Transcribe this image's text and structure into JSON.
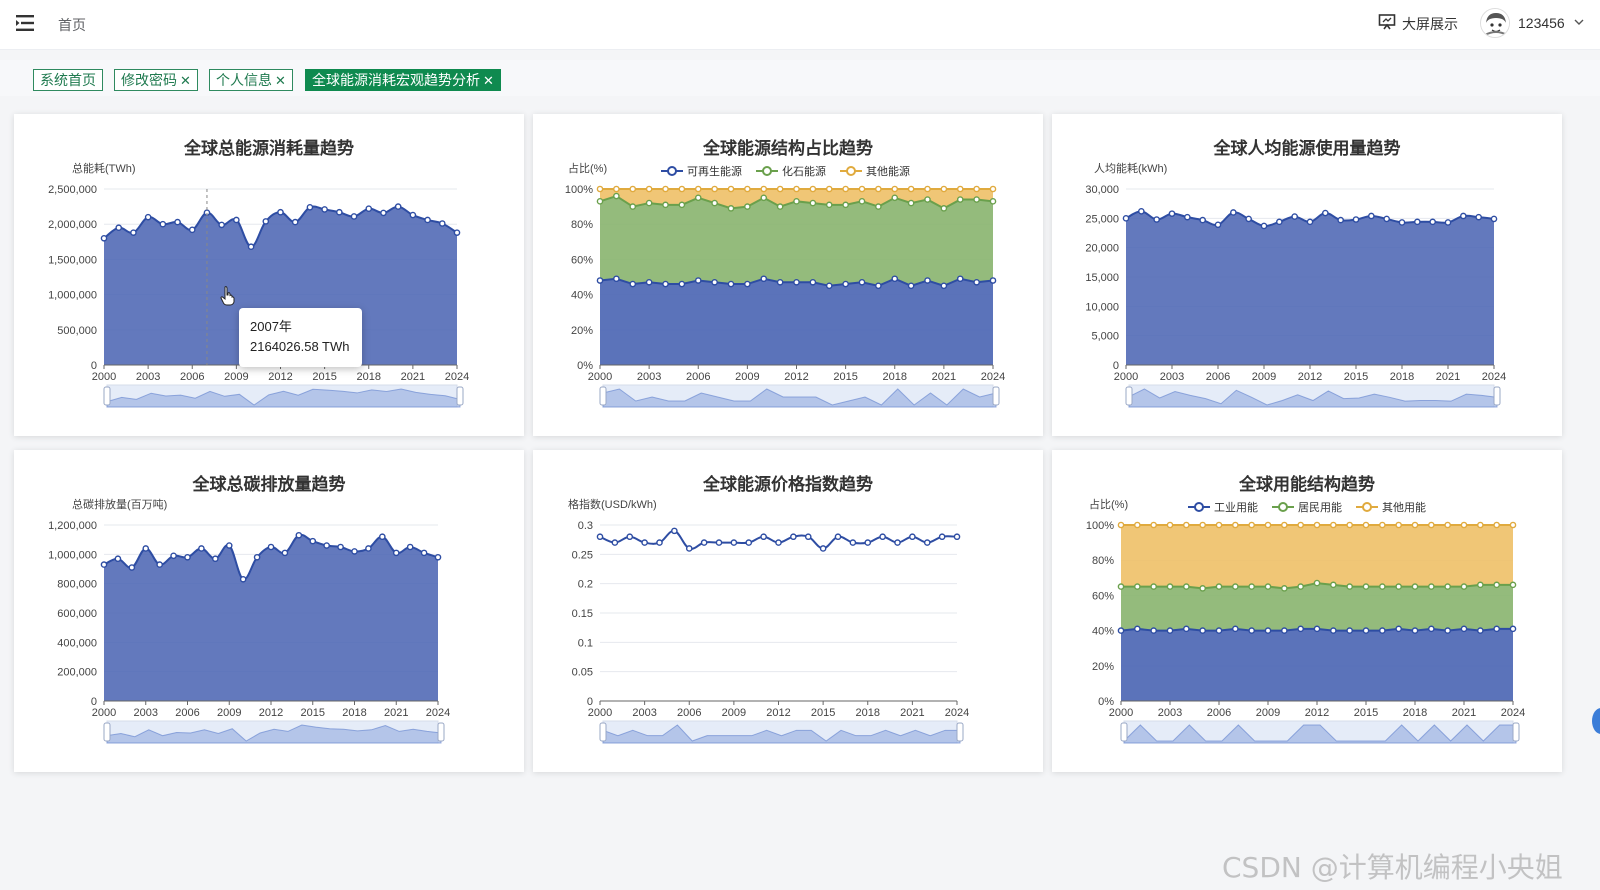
{
  "header": {
    "breadcrumb": "首页",
    "big_screen_label": "大屏展示",
    "username": "123456",
    "icons": {
      "menu": "hamburger-icon",
      "screen": "monitor-icon",
      "avatar": "avatar-icon",
      "chevron": "chevron-down-icon"
    }
  },
  "tabs": [
    {
      "label": "系统首页",
      "closable": false,
      "active": false
    },
    {
      "label": "修改密码",
      "closable": true,
      "active": false
    },
    {
      "label": "个人信息",
      "closable": true,
      "active": false
    },
    {
      "label": "全球能源消耗宏观趋势分析",
      "closable": true,
      "active": true
    }
  ],
  "tooltip": {
    "line1": "2007年",
    "line2": "2164026.58 TWh"
  },
  "watermark": "CSDN @计算机编程小央姐",
  "colors": {
    "blue": "#4d67b4",
    "green": "#88b46e",
    "orange": "#eec067",
    "accent": "#0f8a4f"
  },
  "chart_data": [
    {
      "type": "area",
      "title": "全球总能源消耗量趋势",
      "ylabel": "总能耗(TWh)",
      "ylim": [
        0,
        2500000
      ],
      "yticks": [
        0,
        500000,
        1000000,
        1500000,
        2000000,
        2500000
      ],
      "ytick_labels": [
        "0",
        "500,000",
        "1,000,000",
        "1,500,000",
        "2,000,000",
        "2,500,000"
      ],
      "xtick_labels": [
        "2000",
        "2003",
        "2006",
        "2009",
        "2012",
        "2015",
        "2018",
        "2021",
        "2024"
      ],
      "x": [
        2000,
        2001,
        2002,
        2003,
        2004,
        2005,
        2006,
        2007,
        2008,
        2009,
        2010,
        2011,
        2012,
        2013,
        2014,
        2015,
        2016,
        2017,
        2018,
        2019,
        2020,
        2021,
        2022,
        2023,
        2024
      ],
      "series": [
        {
          "values": [
            1800000,
            1950000,
            1880000,
            2100000,
            2000000,
            2030000,
            1920000,
            2164026.58,
            1990000,
            2060000,
            1680000,
            2040000,
            2170000,
            2030000,
            2240000,
            2210000,
            2170000,
            2110000,
            2220000,
            2160000,
            2250000,
            2130000,
            2060000,
            2010000,
            1880000
          ]
        }
      ]
    },
    {
      "type": "area",
      "stacked": true,
      "title": "全球能源结构占比趋势",
      "ylabel": "占比(%)",
      "ylim": [
        0,
        100
      ],
      "ytick_labels": [
        "0%",
        "20%",
        "40%",
        "60%",
        "80%",
        "100%"
      ],
      "xtick_labels": [
        "2000",
        "2003",
        "2006",
        "2009",
        "2012",
        "2015",
        "2018",
        "2021",
        "2024"
      ],
      "legend": "top-center",
      "series": [
        {
          "name": "可再生能源",
          "values": [
            48,
            49,
            46,
            47,
            46,
            46,
            48,
            47,
            46,
            46,
            49,
            47,
            47,
            47,
            45,
            46,
            47,
            45,
            49,
            45,
            48,
            45,
            49,
            47,
            48
          ]
        },
        {
          "name": "化石能源",
          "values": [
            45,
            47,
            44,
            45,
            45,
            45,
            47,
            45,
            43,
            44,
            46,
            43,
            46,
            45,
            46,
            45,
            46,
            45,
            46,
            47,
            46,
            44,
            45,
            47,
            45
          ]
        },
        {
          "name": "其他能源",
          "values": [
            7,
            4,
            10,
            8,
            9,
            9,
            5,
            8,
            11,
            10,
            5,
            10,
            7,
            8,
            9,
            9,
            7,
            10,
            5,
            8,
            6,
            11,
            6,
            6,
            7
          ]
        }
      ]
    },
    {
      "type": "area",
      "title": "全球人均能源使用量趋势",
      "ylabel": "人均能耗(kWh)",
      "ylim": [
        0,
        30000
      ],
      "ytick_labels": [
        "0",
        "5,000",
        "10,000",
        "15,000",
        "20,000",
        "25,000",
        "30,000"
      ],
      "xtick_labels": [
        "2000",
        "2003",
        "2006",
        "2009",
        "2012",
        "2015",
        "2018",
        "2021",
        "2024"
      ],
      "series": [
        {
          "values": [
            25000,
            26200,
            24800,
            25800,
            25200,
            24700,
            23900,
            26000,
            24900,
            23700,
            24400,
            25300,
            24400,
            25900,
            24700,
            24800,
            25400,
            24900,
            24300,
            24400,
            24400,
            24300,
            25400,
            25200,
            24900
          ]
        }
      ]
    },
    {
      "type": "area",
      "title": "全球总碳排放量趋势",
      "ylabel": "总碳排放量(百万吨)",
      "ylim": [
        0,
        1200000
      ],
      "ytick_labels": [
        "0",
        "200,000",
        "400,000",
        "600,000",
        "800,000",
        "1,000,000",
        "1,200,000"
      ],
      "xtick_labels": [
        "2000",
        "2003",
        "2006",
        "2009",
        "2012",
        "2015",
        "2018",
        "2021",
        "2024"
      ],
      "series": [
        {
          "values": [
            930000,
            970000,
            910000,
            1040000,
            930000,
            990000,
            980000,
            1040000,
            970000,
            1060000,
            830000,
            980000,
            1050000,
            1010000,
            1130000,
            1090000,
            1060000,
            1050000,
            1020000,
            1040000,
            1120000,
            1010000,
            1050000,
            1010000,
            980000
          ]
        }
      ]
    },
    {
      "type": "line",
      "title": "全球能源价格指数趋势",
      "ylabel": "格指数(USD/kWh)",
      "ylim": [
        0,
        0.3
      ],
      "ytick_labels": [
        "0",
        "0.05",
        "0.1",
        "0.15",
        "0.2",
        "0.25",
        "0.3"
      ],
      "xtick_labels": [
        "2000",
        "2003",
        "2006",
        "2009",
        "2012",
        "2015",
        "2018",
        "2021",
        "2024"
      ],
      "series": [
        {
          "values": [
            0.28,
            0.27,
            0.28,
            0.27,
            0.27,
            0.29,
            0.26,
            0.27,
            0.27,
            0.27,
            0.27,
            0.28,
            0.27,
            0.28,
            0.28,
            0.26,
            0.28,
            0.27,
            0.27,
            0.28,
            0.27,
            0.28,
            0.27,
            0.28,
            0.28
          ]
        }
      ]
    },
    {
      "type": "area",
      "stacked": true,
      "title": "全球用能结构趋势",
      "ylabel": "占比(%)",
      "ylim": [
        0,
        100
      ],
      "ytick_labels": [
        "0%",
        "20%",
        "40%",
        "60%",
        "80%",
        "100%"
      ],
      "xtick_labels": [
        "2000",
        "2003",
        "2006",
        "2009",
        "2012",
        "2015",
        "2018",
        "2021",
        "2024"
      ],
      "legend": "top-center",
      "series": [
        {
          "name": "工业用能",
          "values": [
            40,
            41,
            40,
            40,
            41,
            40,
            40,
            41,
            40,
            40,
            40,
            41,
            41,
            40,
            40,
            40,
            40,
            41,
            40,
            41,
            40,
            41,
            40,
            41,
            41
          ]
        },
        {
          "name": "居民用能",
          "values": [
            25,
            24,
            25,
            25,
            24,
            24,
            25,
            24,
            25,
            25,
            24,
            24,
            26,
            26,
            25,
            25,
            25,
            24,
            25,
            24,
            25,
            24,
            26,
            25,
            25
          ]
        },
        {
          "name": "其他用能",
          "values": [
            35,
            35,
            35,
            35,
            35,
            36,
            35,
            35,
            35,
            35,
            36,
            35,
            33,
            34,
            35,
            35,
            35,
            35,
            35,
            35,
            35,
            35,
            34,
            34,
            34
          ]
        }
      ]
    }
  ]
}
